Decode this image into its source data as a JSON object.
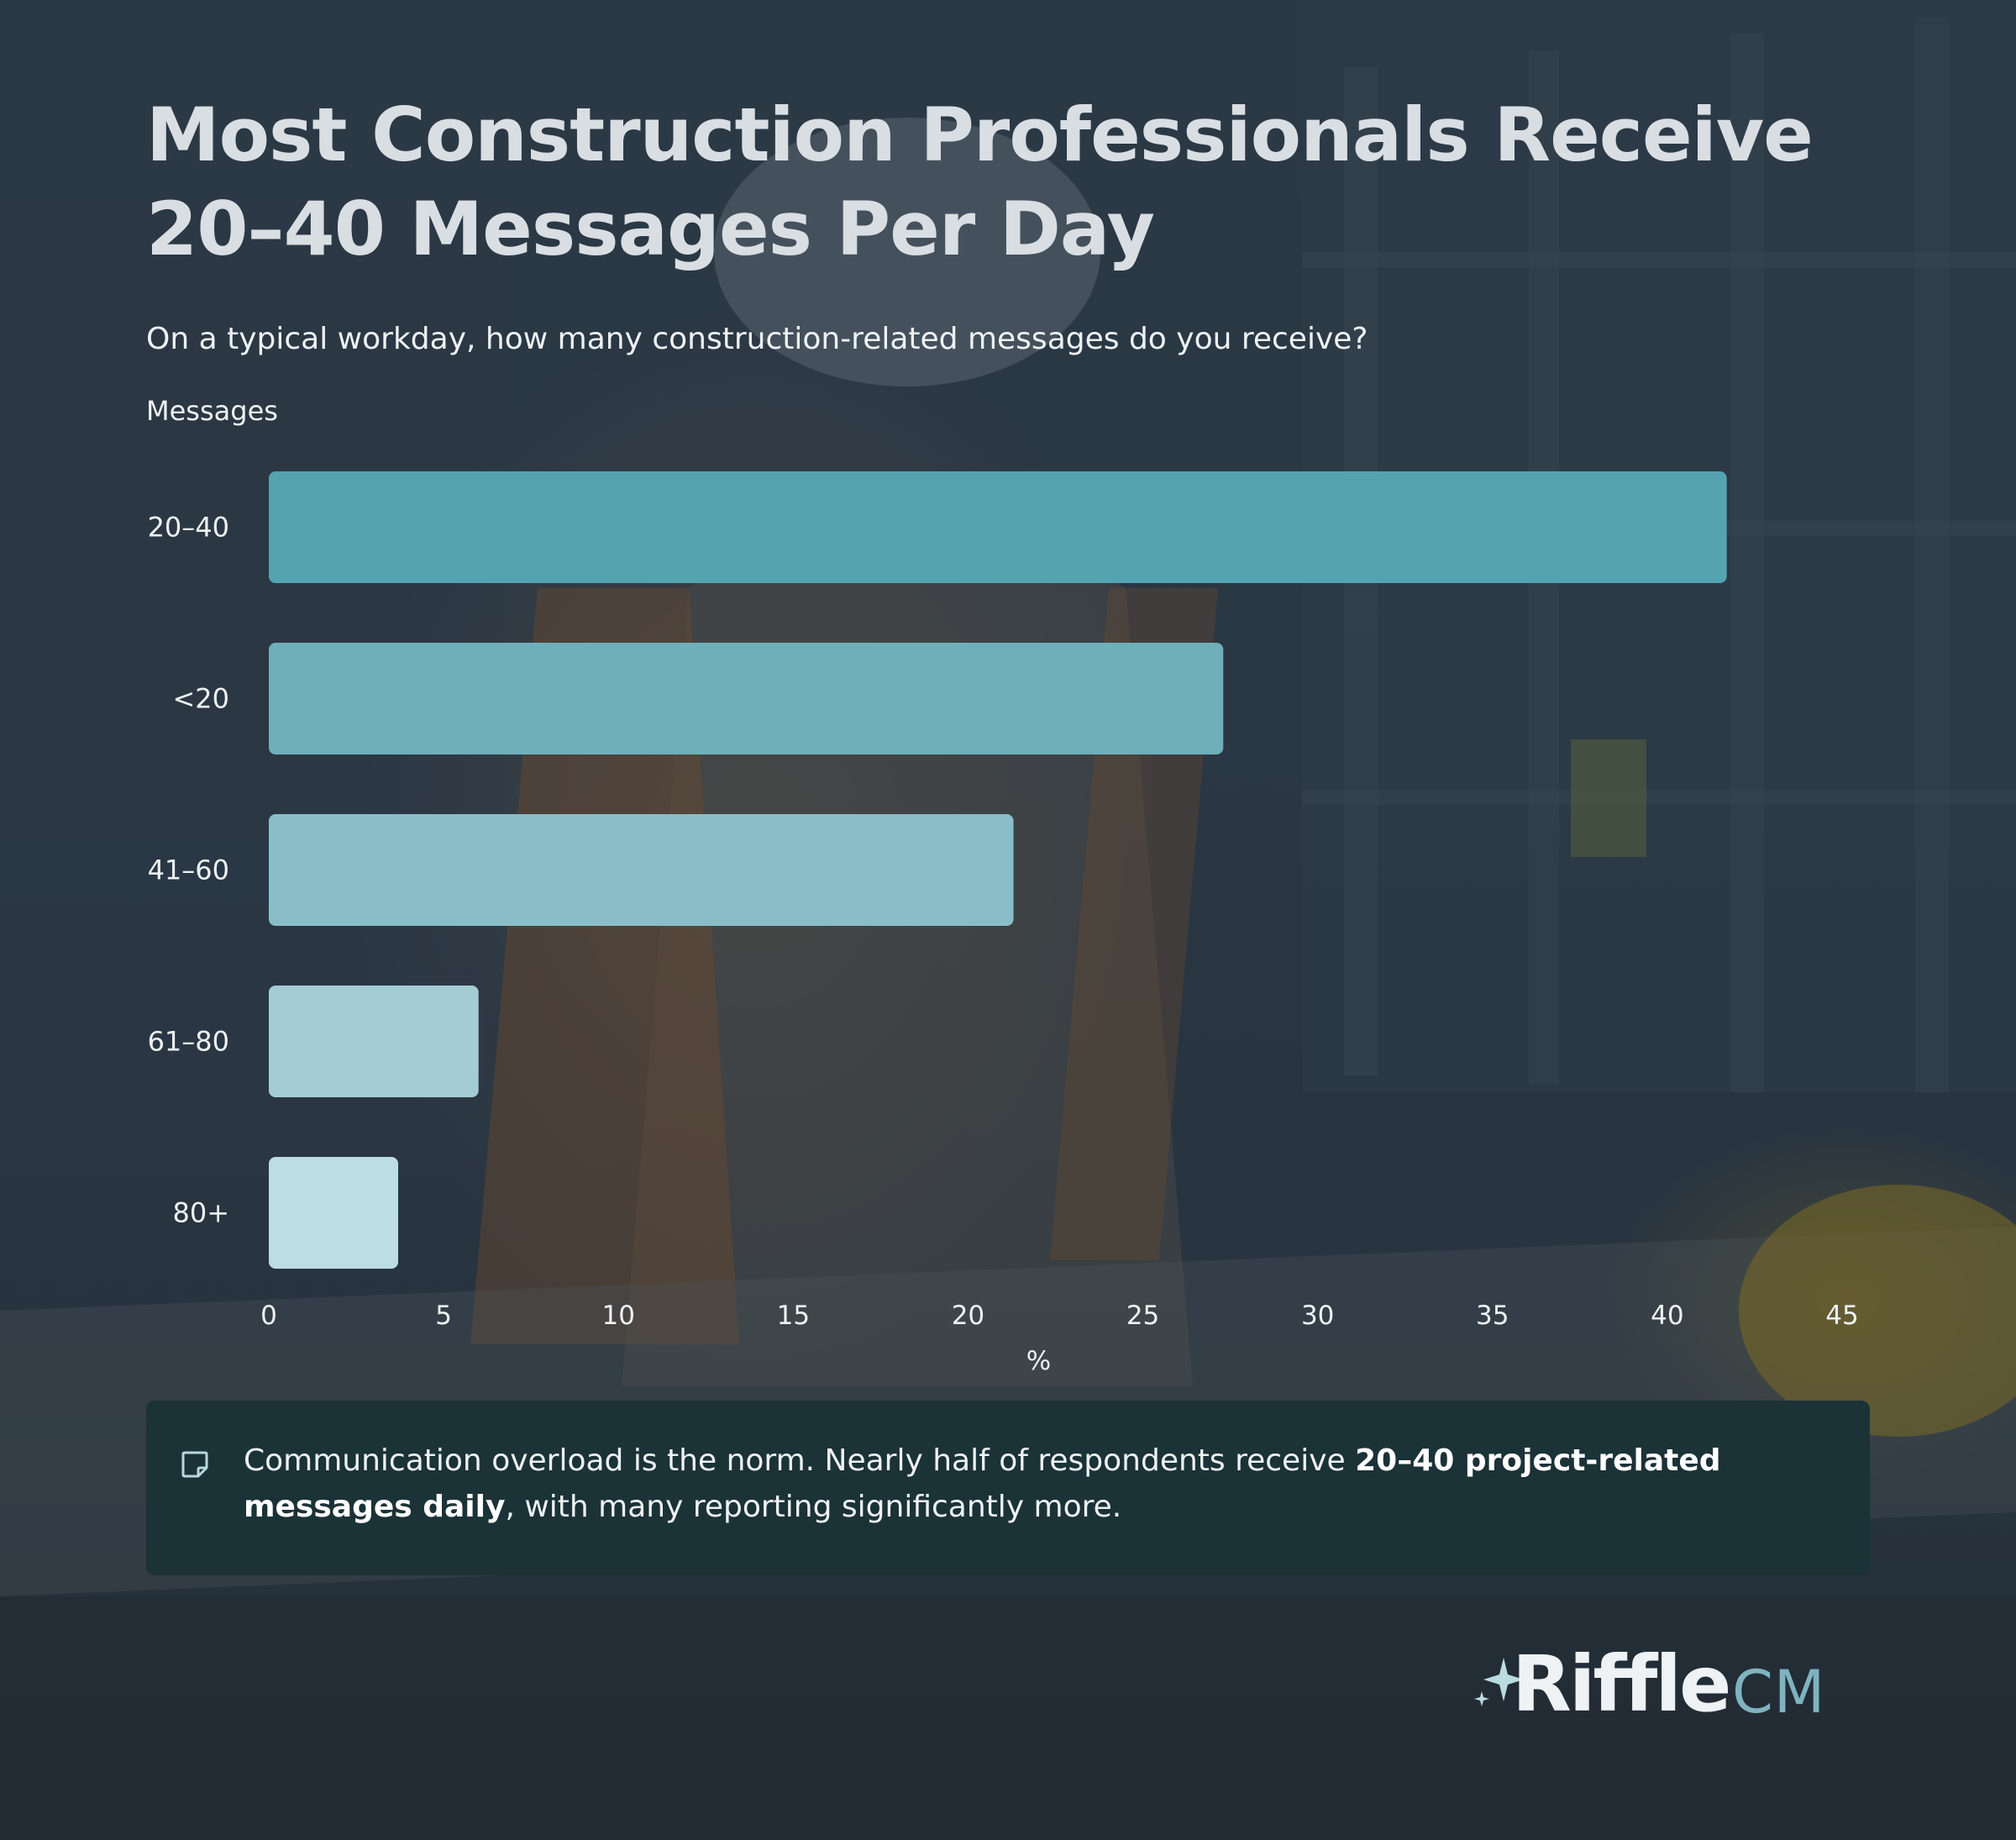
{
  "title": "Most Construction Professionals Receive 20–40 Messages Per Day",
  "subtitle": "On a typical workday, how many construction-related messages do you receive?",
  "callout": {
    "icon": "note-icon",
    "text_before": "Communication overload is the norm. Nearly half of respondents receive ",
    "text_bold": "20–40 project-related messages daily",
    "text_after": ", with many reporting significantly more."
  },
  "logo": {
    "brand": "Riffle",
    "suffix": "CM",
    "icon": "sparkle-icon",
    "accent": "#7fb3bf"
  },
  "chart_data": {
    "type": "bar",
    "orientation": "horizontal",
    "categories": [
      "20–40",
      "<20",
      "41–60",
      "61–80",
      "80+"
    ],
    "values": [
      41.7,
      27.3,
      21.3,
      6.0,
      3.7
    ],
    "colors": [
      "#55a3b0",
      "#6fafba",
      "#89bec8",
      "#a3ccd3",
      "#bcdde2"
    ],
    "ylabel": "Messages",
    "xlabel": "%",
    "xlim": [
      0,
      45
    ],
    "xticks": [
      0,
      5,
      10,
      15,
      20,
      25,
      30,
      35,
      40,
      45
    ],
    "grid": false,
    "legend": "none"
  }
}
